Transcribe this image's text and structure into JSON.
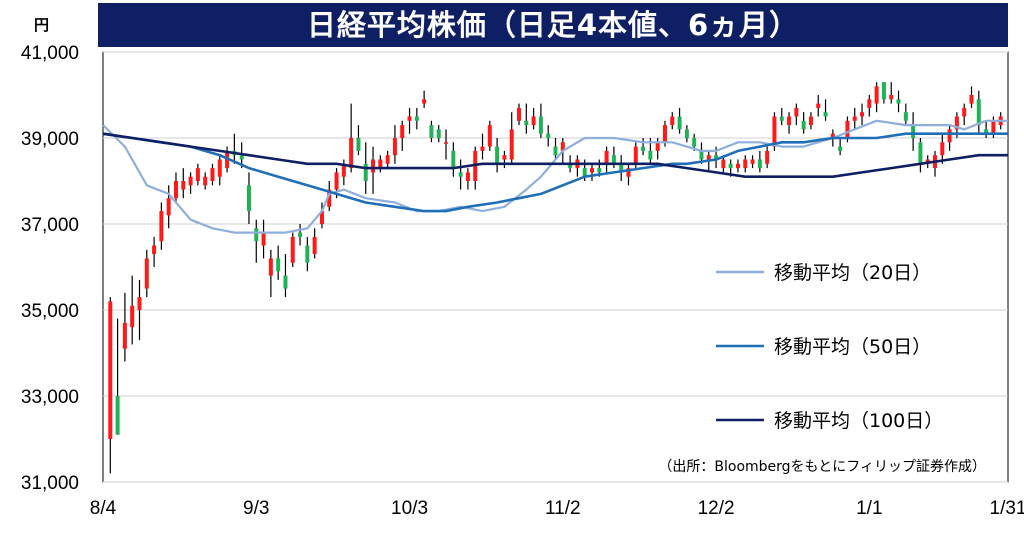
{
  "title": "日経平均株価（日足4本値、6ヵ月）",
  "unit": "円",
  "source": "（出所：Bloombergをもとにフィリップ証券作成）",
  "colors": {
    "up": "#ff1a1a",
    "down": "#1fb356",
    "wick": "#000000",
    "ma20": "#8eaedc",
    "ma50": "#1f6fb8",
    "ma100": "#0f1f63",
    "title_bg": "#0f1f63"
  },
  "chart_data": {
    "type": "candlestick",
    "title": "日経平均株価（日足4本値、6ヵ月）",
    "ylabel": "円",
    "ylim": [
      31000,
      41000
    ],
    "yticks": [
      31000,
      33000,
      35000,
      37000,
      39000,
      41000
    ],
    "ytick_labels": [
      "31,000",
      "33,000",
      "35,000",
      "37,000",
      "39,000",
      "41,000"
    ],
    "xlim": [
      0,
      124
    ],
    "xticks": [
      {
        "pos": 0,
        "label": "8/4"
      },
      {
        "pos": 21,
        "label": "9/3"
      },
      {
        "pos": 42,
        "label": "10/3"
      },
      {
        "pos": 63,
        "label": "11/2"
      },
      {
        "pos": 84,
        "label": "12/2"
      },
      {
        "pos": 105,
        "label": "1/1"
      },
      {
        "pos": 124,
        "label": "1/31"
      }
    ],
    "grid": "horizontal",
    "legend": "right",
    "candles": [
      [
        1,
        32000,
        35300,
        31200,
        35200
      ],
      [
        2,
        33000,
        34800,
        32100,
        32100
      ],
      [
        3,
        34100,
        35400,
        33800,
        34700
      ],
      [
        4,
        34600,
        35800,
        34200,
        35100
      ],
      [
        5,
        35000,
        35700,
        34300,
        35300
      ],
      [
        6,
        35500,
        36400,
        35300,
        36200
      ],
      [
        7,
        36300,
        36700,
        36000,
        36500
      ],
      [
        8,
        36600,
        37500,
        36400,
        37300
      ],
      [
        9,
        37200,
        37900,
        36900,
        37600
      ],
      [
        10,
        37600,
        38200,
        37500,
        38000
      ],
      [
        11,
        37800,
        38300,
        37600,
        38000
      ],
      [
        12,
        37900,
        38200,
        37700,
        38100
      ],
      [
        13,
        38000,
        38400,
        37900,
        38300
      ],
      [
        14,
        37900,
        38200,
        37800,
        38100
      ],
      [
        15,
        38000,
        38400,
        37900,
        38300
      ],
      [
        16,
        38100,
        38600,
        37900,
        38500
      ],
      [
        17,
        38300,
        38800,
        38200,
        38700
      ],
      [
        18,
        38700,
        39100,
        38400,
        38600
      ],
      [
        19,
        38600,
        38900,
        38300,
        38500
      ],
      [
        20,
        37900,
        38200,
        37000,
        37300
      ],
      [
        21,
        36900,
        37100,
        36100,
        36600
      ],
      [
        22,
        36500,
        37100,
        36200,
        36800
      ],
      [
        23,
        35800,
        36400,
        35300,
        36200
      ],
      [
        24,
        36200,
        36500,
        35700,
        35900
      ],
      [
        25,
        35800,
        36300,
        35300,
        35500
      ],
      [
        26,
        36100,
        36800,
        36000,
        36700
      ],
      [
        27,
        36800,
        37000,
        36500,
        36700
      ],
      [
        28,
        36500,
        36700,
        35900,
        36100
      ],
      [
        29,
        36300,
        36900,
        36200,
        36700
      ],
      [
        30,
        37000,
        37500,
        36900,
        37300
      ],
      [
        31,
        37400,
        38000,
        37300,
        37800
      ],
      [
        32,
        37800,
        38300,
        37600,
        38200
      ],
      [
        33,
        38100,
        38500,
        37900,
        38400
      ],
      [
        34,
        38300,
        39800,
        38200,
        39000
      ],
      [
        35,
        39000,
        39300,
        38600,
        38700
      ],
      [
        36,
        38400,
        38900,
        37700,
        38000
      ],
      [
        37,
        38200,
        38800,
        37700,
        38500
      ],
      [
        38,
        38300,
        38600,
        38200,
        38500
      ],
      [
        39,
        38400,
        38700,
        38300,
        38600
      ],
      [
        40,
        38600,
        39300,
        38400,
        39000
      ],
      [
        41,
        39000,
        39400,
        38700,
        39300
      ],
      [
        42,
        39400,
        39700,
        39100,
        39500
      ],
      [
        43,
        39500,
        39700,
        39200,
        39400
      ],
      [
        44,
        39800,
        40100,
        39700,
        39900
      ],
      [
        45,
        39300,
        39400,
        38900,
        39000
      ],
      [
        46,
        39200,
        39300,
        38900,
        39000
      ],
      [
        47,
        38900,
        39200,
        38500,
        38900
      ],
      [
        48,
        38700,
        38900,
        38100,
        38300
      ],
      [
        49,
        38200,
        38500,
        37800,
        38100
      ],
      [
        50,
        38000,
        38300,
        37800,
        38200
      ],
      [
        51,
        38000,
        38800,
        37800,
        38700
      ],
      [
        52,
        38700,
        39100,
        38500,
        38800
      ],
      [
        53,
        38800,
        39400,
        38700,
        39300
      ],
      [
        54,
        38800,
        39000,
        38200,
        38400
      ],
      [
        55,
        38500,
        38700,
        38300,
        38600
      ],
      [
        56,
        38500,
        39600,
        38400,
        39200
      ],
      [
        57,
        39400,
        39800,
        39300,
        39700
      ],
      [
        58,
        39400,
        39800,
        39100,
        39300
      ],
      [
        59,
        39300,
        39700,
        39200,
        39500
      ],
      [
        60,
        39500,
        39800,
        39000,
        39100
      ],
      [
        61,
        39100,
        39300,
        38800,
        39000
      ],
      [
        62,
        38800,
        39000,
        38500,
        38600
      ],
      [
        63,
        38700,
        39000,
        38400,
        38900
      ],
      [
        64,
        38400,
        38600,
        38200,
        38300
      ],
      [
        65,
        38300,
        38600,
        38100,
        38500
      ],
      [
        66,
        38300,
        38500,
        38000,
        38100
      ],
      [
        67,
        38200,
        38400,
        38000,
        38300
      ],
      [
        68,
        38300,
        38500,
        38100,
        38200
      ],
      [
        69,
        38400,
        38800,
        38200,
        38700
      ],
      [
        70,
        38600,
        38800,
        38300,
        38400
      ],
      [
        71,
        38400,
        38600,
        38000,
        38200
      ],
      [
        72,
        38100,
        38400,
        37900,
        38300
      ],
      [
        73,
        38400,
        38900,
        38300,
        38800
      ],
      [
        74,
        38800,
        39000,
        38600,
        38700
      ],
      [
        75,
        38700,
        39000,
        38400,
        38500
      ],
      [
        76,
        38700,
        39000,
        38500,
        38900
      ],
      [
        77,
        38900,
        39400,
        38800,
        39300
      ],
      [
        78,
        39300,
        39600,
        39200,
        39500
      ],
      [
        79,
        39500,
        39700,
        39100,
        39200
      ],
      [
        80,
        39200,
        39300,
        38900,
        39000
      ],
      [
        81,
        39000,
        39100,
        38700,
        38800
      ],
      [
        82,
        38700,
        38900,
        38400,
        38500
      ],
      [
        83,
        38500,
        38700,
        38200,
        38600
      ],
      [
        84,
        38600,
        38800,
        38300,
        38500
      ],
      [
        85,
        38300,
        38600,
        38200,
        38500
      ],
      [
        86,
        38400,
        38500,
        38100,
        38300
      ],
      [
        87,
        38300,
        38500,
        38200,
        38400
      ],
      [
        88,
        38300,
        38600,
        38200,
        38500
      ],
      [
        89,
        38400,
        38600,
        38300,
        38500
      ],
      [
        90,
        38500,
        38700,
        38200,
        38300
      ],
      [
        91,
        38400,
        38800,
        38300,
        38700
      ],
      [
        92,
        38800,
        39600,
        38700,
        39500
      ],
      [
        93,
        39500,
        39700,
        39300,
        39400
      ],
      [
        94,
        39300,
        39600,
        39100,
        39500
      ],
      [
        95,
        39500,
        39800,
        39300,
        39700
      ],
      [
        96,
        39400,
        39600,
        39100,
        39200
      ],
      [
        97,
        39300,
        39600,
        39200,
        39500
      ],
      [
        98,
        39700,
        40000,
        39500,
        39800
      ],
      [
        99,
        39600,
        39900,
        39400,
        39500
      ],
      [
        100,
        39000,
        39200,
        38800,
        39100
      ],
      [
        101,
        38800,
        39000,
        38600,
        38700
      ],
      [
        102,
        39000,
        39500,
        38900,
        39400
      ],
      [
        103,
        39400,
        39700,
        39200,
        39500
      ],
      [
        104,
        39500,
        39800,
        39300,
        39600
      ],
      [
        105,
        39700,
        40000,
        39500,
        39900
      ],
      [
        106,
        39800,
        40300,
        39600,
        40200
      ],
      [
        107,
        40300,
        40300,
        39800,
        39900
      ],
      [
        108,
        39900,
        40300,
        39800,
        40000
      ],
      [
        109,
        39900,
        40100,
        39600,
        39800
      ],
      [
        110,
        39600,
        39800,
        39300,
        39400
      ],
      [
        111,
        39300,
        39600,
        38700,
        39000
      ],
      [
        112,
        38900,
        39000,
        38200,
        38400
      ],
      [
        113,
        38400,
        38600,
        38300,
        38500
      ],
      [
        114,
        38300,
        38700,
        38100,
        38600
      ],
      [
        115,
        38600,
        39100,
        38400,
        38900
      ],
      [
        116,
        38900,
        39300,
        38700,
        39200
      ],
      [
        117,
        39200,
        39600,
        39000,
        39500
      ],
      [
        118,
        39500,
        39800,
        39300,
        39700
      ],
      [
        119,
        39800,
        40200,
        39700,
        40000
      ],
      [
        120,
        39900,
        40100,
        39100,
        39300
      ],
      [
        121,
        39200,
        39400,
        39000,
        39100
      ],
      [
        122,
        39100,
        39500,
        39000,
        39400
      ],
      [
        123,
        39300,
        39600,
        39200,
        39500
      ]
    ],
    "series": [
      {
        "name": "移動平均（20日）",
        "points": [
          [
            0,
            39300
          ],
          [
            3,
            38800
          ],
          [
            6,
            37900
          ],
          [
            9,
            37700
          ],
          [
            12,
            37100
          ],
          [
            15,
            36900
          ],
          [
            18,
            36800
          ],
          [
            22,
            36800
          ],
          [
            25,
            36800
          ],
          [
            28,
            36900
          ],
          [
            30,
            37300
          ],
          [
            31,
            37700
          ],
          [
            33,
            37800
          ],
          [
            36,
            37600
          ],
          [
            40,
            37500
          ],
          [
            43,
            37300
          ],
          [
            46,
            37300
          ],
          [
            49,
            37400
          ],
          [
            52,
            37300
          ],
          [
            55,
            37400
          ],
          [
            58,
            37800
          ],
          [
            60,
            38100
          ],
          [
            63,
            38700
          ],
          [
            66,
            39000
          ],
          [
            70,
            39000
          ],
          [
            74,
            38900
          ],
          [
            78,
            38900
          ],
          [
            82,
            38700
          ],
          [
            84,
            38700
          ],
          [
            87,
            38900
          ],
          [
            90,
            38900
          ],
          [
            93,
            38800
          ],
          [
            96,
            38800
          ],
          [
            100,
            39000
          ],
          [
            103,
            39200
          ],
          [
            106,
            39400
          ],
          [
            110,
            39300
          ],
          [
            113,
            39300
          ],
          [
            116,
            39300
          ],
          [
            118,
            39200
          ],
          [
            121,
            39400
          ],
          [
            124,
            39400
          ]
        ]
      },
      {
        "name": "移動平均（50日）",
        "points": [
          [
            0,
            39100
          ],
          [
            4,
            39000
          ],
          [
            8,
            38900
          ],
          [
            12,
            38800
          ],
          [
            16,
            38600
          ],
          [
            20,
            38300
          ],
          [
            24,
            38100
          ],
          [
            28,
            37900
          ],
          [
            32,
            37700
          ],
          [
            36,
            37500
          ],
          [
            40,
            37400
          ],
          [
            44,
            37300
          ],
          [
            47,
            37300
          ],
          [
            50,
            37400
          ],
          [
            54,
            37500
          ],
          [
            57,
            37600
          ],
          [
            60,
            37700
          ],
          [
            63,
            37900
          ],
          [
            66,
            38100
          ],
          [
            70,
            38200
          ],
          [
            74,
            38300
          ],
          [
            78,
            38400
          ],
          [
            80,
            38400
          ],
          [
            84,
            38500
          ],
          [
            87,
            38700
          ],
          [
            90,
            38800
          ],
          [
            93,
            38900
          ],
          [
            96,
            38900
          ],
          [
            100,
            39000
          ],
          [
            103,
            39000
          ],
          [
            106,
            39000
          ],
          [
            110,
            39100
          ],
          [
            113,
            39100
          ],
          [
            117,
            39100
          ],
          [
            121,
            39100
          ],
          [
            124,
            39100
          ]
        ]
      },
      {
        "name": "移動平均（100日）",
        "points": [
          [
            0,
            39100
          ],
          [
            4,
            39000
          ],
          [
            8,
            38900
          ],
          [
            12,
            38800
          ],
          [
            16,
            38700
          ],
          [
            20,
            38600
          ],
          [
            24,
            38500
          ],
          [
            28,
            38400
          ],
          [
            32,
            38400
          ],
          [
            36,
            38300
          ],
          [
            40,
            38300
          ],
          [
            44,
            38300
          ],
          [
            48,
            38300
          ],
          [
            52,
            38400
          ],
          [
            56,
            38400
          ],
          [
            60,
            38400
          ],
          [
            64,
            38400
          ],
          [
            68,
            38400
          ],
          [
            72,
            38400
          ],
          [
            76,
            38400
          ],
          [
            80,
            38300
          ],
          [
            84,
            38200
          ],
          [
            88,
            38100
          ],
          [
            92,
            38100
          ],
          [
            96,
            38100
          ],
          [
            100,
            38100
          ],
          [
            104,
            38200
          ],
          [
            108,
            38300
          ],
          [
            112,
            38400
          ],
          [
            116,
            38500
          ],
          [
            120,
            38600
          ],
          [
            124,
            38600
          ]
        ]
      }
    ]
  }
}
